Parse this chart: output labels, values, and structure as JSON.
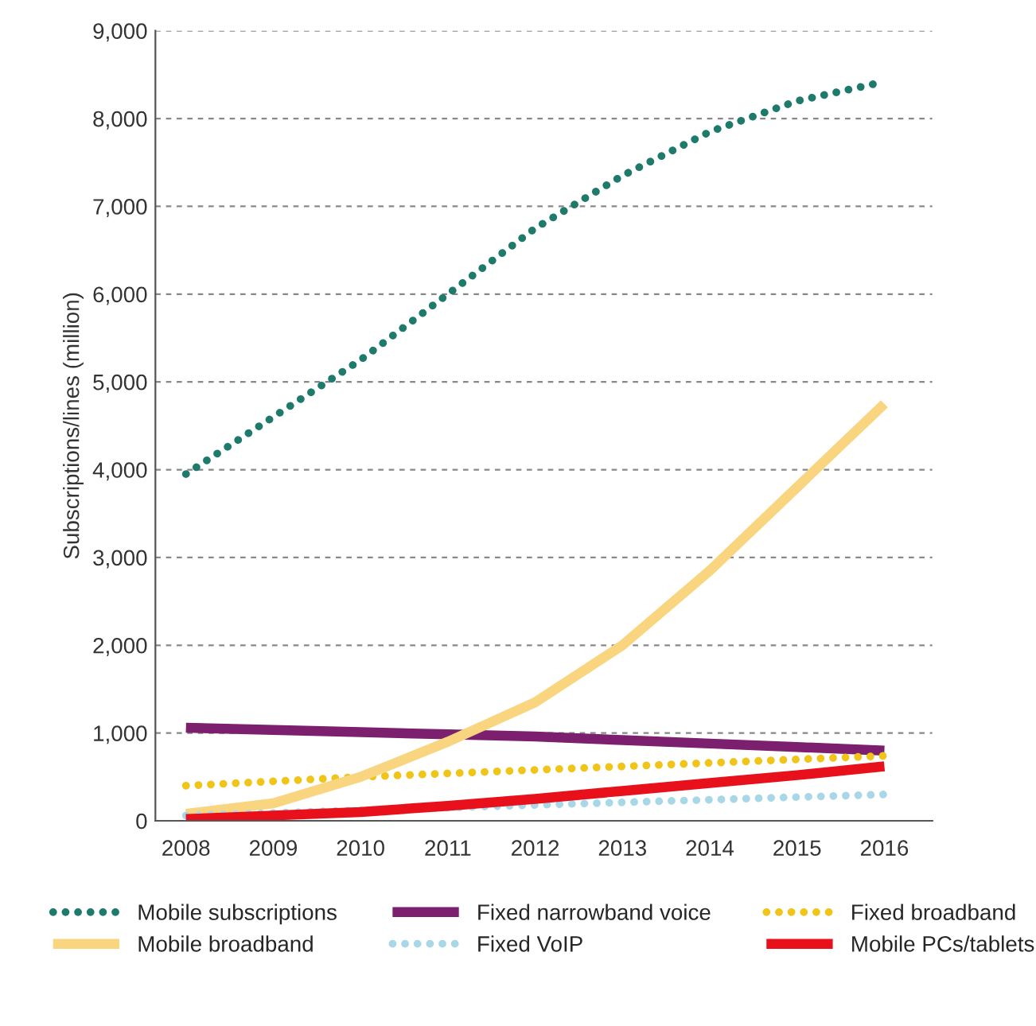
{
  "chart_data": {
    "type": "line",
    "ylabel": "Subscriptions/lines (million)",
    "x": [
      2008,
      2009,
      2010,
      2011,
      2012,
      2013,
      2014,
      2015,
      2016
    ],
    "xlim": [
      2007.65,
      2016.55
    ],
    "xticks": [
      2008,
      2009,
      2010,
      2011,
      2012,
      2013,
      2014,
      2015,
      2016
    ],
    "ylim": [
      0,
      9000
    ],
    "yticks": [
      {
        "value": 0,
        "label": "0"
      },
      {
        "value": 1000,
        "label": "1,000"
      },
      {
        "value": 2000,
        "label": "2,000"
      },
      {
        "value": 3000,
        "label": "3,000"
      },
      {
        "value": 4000,
        "label": "4,000"
      },
      {
        "value": 5000,
        "label": "5,000"
      },
      {
        "value": 6000,
        "label": "6,000"
      },
      {
        "value": 7000,
        "label": "7,000"
      },
      {
        "value": 8000,
        "label": "8,000"
      },
      {
        "value": 9000,
        "label": "9,000"
      }
    ],
    "grid": "y",
    "legend": "bottom",
    "series": [
      {
        "name": "Mobile subscriptions",
        "color": "#1e7a6a",
        "line_style": "dotted",
        "values": [
          3950,
          4600,
          5250,
          6000,
          6750,
          7350,
          7850,
          8200,
          8420
        ]
      },
      {
        "name": "Fixed narrowband voice",
        "color": "#7b1f6e",
        "line_style": "solid",
        "values": [
          1060,
          1035,
          1010,
          985,
          960,
          920,
          880,
          840,
          800
        ]
      },
      {
        "name": "Fixed broadband",
        "color": "#f0c419",
        "line_style": "dotted",
        "values": [
          400,
          450,
          500,
          540,
          580,
          620,
          660,
          700,
          740
        ]
      },
      {
        "name": "Mobile broadband",
        "color": "#f8d57e",
        "line_style": "solid",
        "values": [
          80,
          200,
          500,
          900,
          1350,
          2000,
          2850,
          3800,
          4750
        ]
      },
      {
        "name": "Fixed VoIP",
        "color": "#a8d8e8",
        "line_style": "dotted",
        "values": [
          60,
          90,
          120,
          150,
          180,
          210,
          240,
          270,
          300
        ]
      },
      {
        "name": "Mobile PCs/tablets",
        "color": "#e8101a",
        "line_style": "solid",
        "values": [
          20,
          60,
          100,
          170,
          250,
          340,
          430,
          520,
          620
        ]
      }
    ]
  }
}
